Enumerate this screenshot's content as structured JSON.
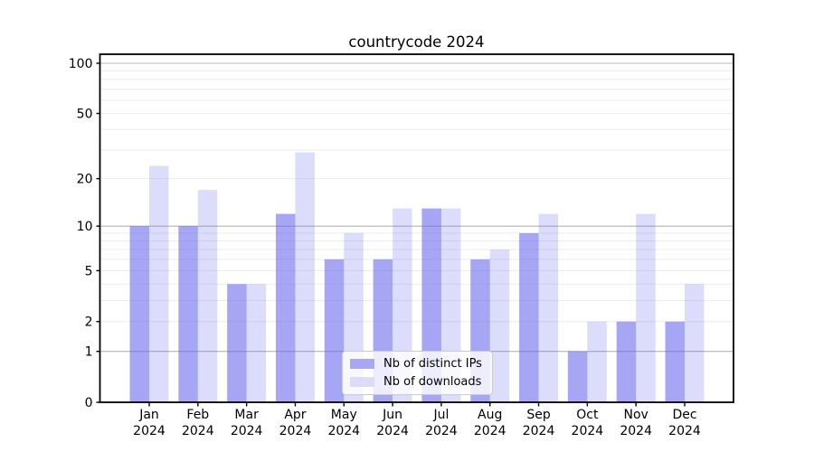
{
  "chart_data": {
    "type": "bar",
    "title": "countrycode 2024",
    "categories": [
      {
        "month": "Jan",
        "year": "2024"
      },
      {
        "month": "Feb",
        "year": "2024"
      },
      {
        "month": "Mar",
        "year": "2024"
      },
      {
        "month": "Apr",
        "year": "2024"
      },
      {
        "month": "May",
        "year": "2024"
      },
      {
        "month": "Jun",
        "year": "2024"
      },
      {
        "month": "Jul",
        "year": "2024"
      },
      {
        "month": "Aug",
        "year": "2024"
      },
      {
        "month": "Sep",
        "year": "2024"
      },
      {
        "month": "Oct",
        "year": "2024"
      },
      {
        "month": "Nov",
        "year": "2024"
      },
      {
        "month": "Dec",
        "year": "2024"
      }
    ],
    "series": [
      {
        "name": "Nb of distinct IPs",
        "values": [
          10,
          10,
          4,
          12,
          6,
          6,
          13,
          6,
          9,
          1,
          2,
          2
        ],
        "fill": "#6666ee",
        "fill_opacity": 0.58,
        "legend_color": "#a7a7f6"
      },
      {
        "name": "Nb of downloads",
        "values": [
          24,
          17,
          4,
          29,
          9,
          13,
          13,
          7,
          12,
          2,
          12,
          4
        ],
        "fill": "#6666ee",
        "fill_opacity": 0.23,
        "legend_color": "#dcdcf9"
      }
    ],
    "xlabel": "",
    "ylabel": "",
    "yscale": "log1p",
    "ylim": [
      0,
      114
    ],
    "yticks": [
      0,
      1,
      2,
      5,
      10,
      20,
      50,
      100
    ],
    "major_gridlines": [
      1,
      10,
      100
    ],
    "minor_gridlines": [
      2,
      3,
      4,
      5,
      6,
      7,
      8,
      9,
      20,
      30,
      40,
      50,
      60,
      70,
      80,
      90
    ],
    "grid": true,
    "legend_position": "lower center"
  },
  "style": {
    "background": "#ffffff",
    "axis_color": "#000000",
    "tick_label_color": "#000000",
    "major_grid_color": "#b4b4b4",
    "minor_grid_color": "#ececec",
    "legend_border_color": "#cccccc"
  }
}
